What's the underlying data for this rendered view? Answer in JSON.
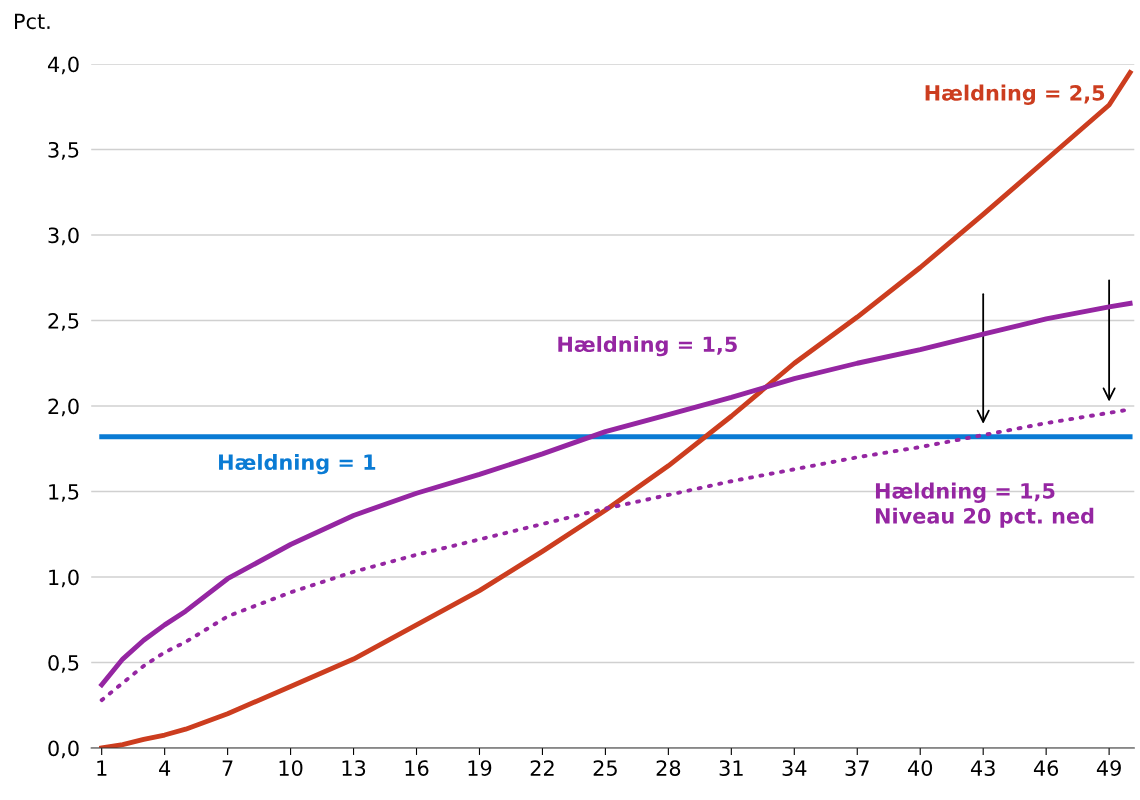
{
  "chart_data": {
    "type": "line",
    "ylabel": "Pct.",
    "x": [
      1,
      2,
      3,
      4,
      5,
      7,
      10,
      13,
      16,
      19,
      22,
      25,
      28,
      31,
      34,
      37,
      40,
      43,
      46,
      49,
      50
    ],
    "xlim": [
      0.5,
      50.2
    ],
    "xticks": [
      1,
      4,
      7,
      10,
      13,
      16,
      19,
      22,
      25,
      28,
      31,
      34,
      37,
      40,
      43,
      46,
      49
    ],
    "ylim": [
      0,
      4
    ],
    "yticks": [
      {
        "value": 0,
        "label": "0,0"
      },
      {
        "value": 0.5,
        "label": "0,5"
      },
      {
        "value": 1,
        "label": "1,0"
      },
      {
        "value": 1.5,
        "label": "1,5"
      },
      {
        "value": 2,
        "label": "2,0"
      },
      {
        "value": 2.5,
        "label": "2,5"
      },
      {
        "value": 3,
        "label": "3,0"
      },
      {
        "value": 3.5,
        "label": "3,5"
      },
      {
        "value": 4,
        "label": "4,0"
      }
    ],
    "grid": "y",
    "legend": false,
    "series": [
      {
        "name": "Hældning = 1",
        "color": "#0a7bd4",
        "line_style": "solid",
        "values": [
          1.82,
          1.82,
          1.82,
          1.82,
          1.82,
          1.82,
          1.82,
          1.82,
          1.82,
          1.82,
          1.82,
          1.82,
          1.82,
          1.82,
          1.82,
          1.82,
          1.82,
          1.82,
          1.82,
          1.82,
          1.82
        ]
      },
      {
        "name": "Hældning = 2,5",
        "color": "#cc3d1f",
        "line_style": "solid",
        "values": [
          0.0,
          0.02,
          0.05,
          0.076,
          0.11,
          0.2,
          0.36,
          0.52,
          0.72,
          0.92,
          1.15,
          1.39,
          1.65,
          1.94,
          2.25,
          2.52,
          2.81,
          3.12,
          3.44,
          3.76,
          3.95
        ]
      },
      {
        "name": "Hældning = 1,5",
        "color": "#9526a2",
        "line_style": "solid",
        "values": [
          0.37,
          0.52,
          0.63,
          0.72,
          0.8,
          0.99,
          1.19,
          1.36,
          1.49,
          1.6,
          1.72,
          1.85,
          1.95,
          2.05,
          2.16,
          2.25,
          2.33,
          2.42,
          2.51,
          2.58,
          2.6
        ]
      },
      {
        "name": "Hældning = 1,5\nNiveau 20 pct. ned",
        "color": "#9526a2",
        "line_style": "dotted",
        "values": [
          0.28,
          0.38,
          0.48,
          0.56,
          0.62,
          0.77,
          0.91,
          1.03,
          1.13,
          1.22,
          1.31,
          1.4,
          1.48,
          1.56,
          1.63,
          1.7,
          1.76,
          1.83,
          1.9,
          1.96,
          1.98
        ]
      }
    ]
  }
}
